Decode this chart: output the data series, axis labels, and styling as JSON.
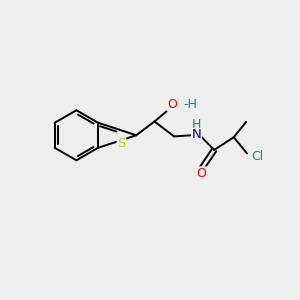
{
  "bg_color": "#eeeeee",
  "atom_colors": {
    "C": "#000000",
    "S": "#cccc00",
    "O": "#ff0000",
    "N": "#000099",
    "Cl": "#00aa00",
    "H": "#008888"
  },
  "bond_color": "#000000",
  "figsize": [
    3.0,
    3.0
  ],
  "dpi": 100
}
